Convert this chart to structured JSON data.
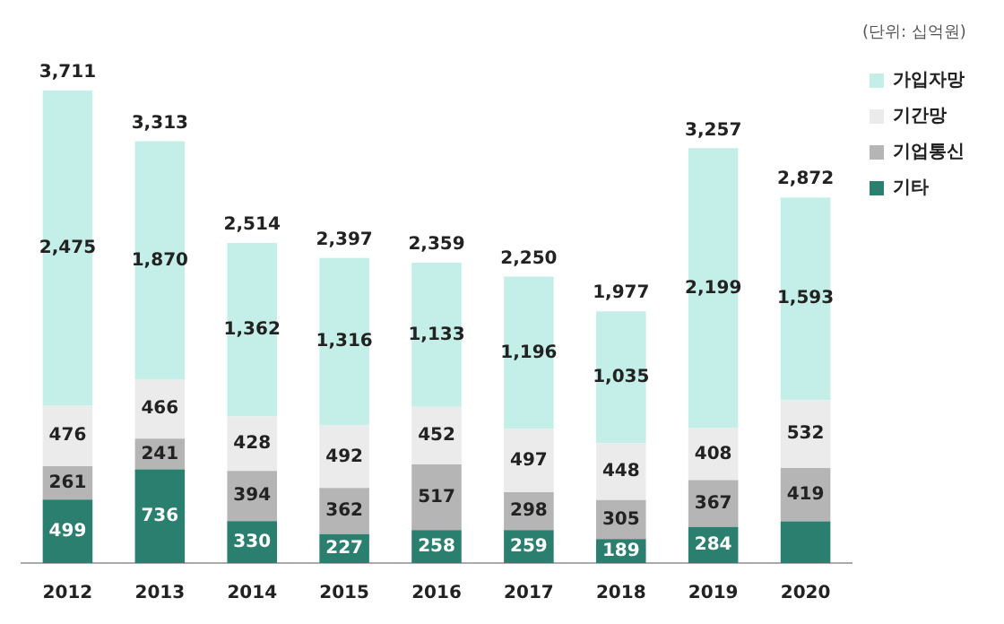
{
  "chart_data": {
    "type": "bar",
    "stacked": true,
    "categories": [
      "2012",
      "2013",
      "2014",
      "2015",
      "2016",
      "2017",
      "2018",
      "2019",
      "2020"
    ],
    "series": [
      {
        "name": "기타",
        "color": "#2a7f6f",
        "values": [
          499,
          736,
          330,
          227,
          258,
          259,
          189,
          284,
          328
        ],
        "value_labels": [
          "499",
          "736",
          "330",
          "227",
          "258",
          "259",
          "189",
          "284",
          null
        ]
      },
      {
        "name": "기업통신",
        "color": "#b5b5b5",
        "values": [
          261,
          241,
          394,
          362,
          517,
          298,
          305,
          367,
          419
        ],
        "value_labels": [
          "261",
          "241",
          "394",
          "362",
          "517",
          "298",
          "305",
          "367",
          "419"
        ]
      },
      {
        "name": "기간망",
        "color": "#ebebeb",
        "values": [
          476,
          466,
          428,
          492,
          452,
          497,
          448,
          408,
          532
        ],
        "value_labels": [
          "476",
          "466",
          "428",
          "492",
          "452",
          "497",
          "448",
          "408",
          "532"
        ]
      },
      {
        "name": "가입자망",
        "color": "#c4efe8",
        "values": [
          2475,
          1870,
          1362,
          1316,
          1133,
          1196,
          1035,
          2199,
          1593
        ],
        "value_labels": [
          "2,475",
          "1,870",
          "1,362",
          "1,316",
          "1,133",
          "1,196",
          "1,035",
          "2,199",
          "1,593"
        ]
      }
    ],
    "totals": [
      "3,711",
      "3,313",
      "2,514",
      "2,397",
      "2,359",
      "2,250",
      "1,977",
      "3,257",
      "2,872"
    ],
    "legend": "top right",
    "grid": false,
    "annotations": [
      "(단위: 십억원)"
    ]
  }
}
